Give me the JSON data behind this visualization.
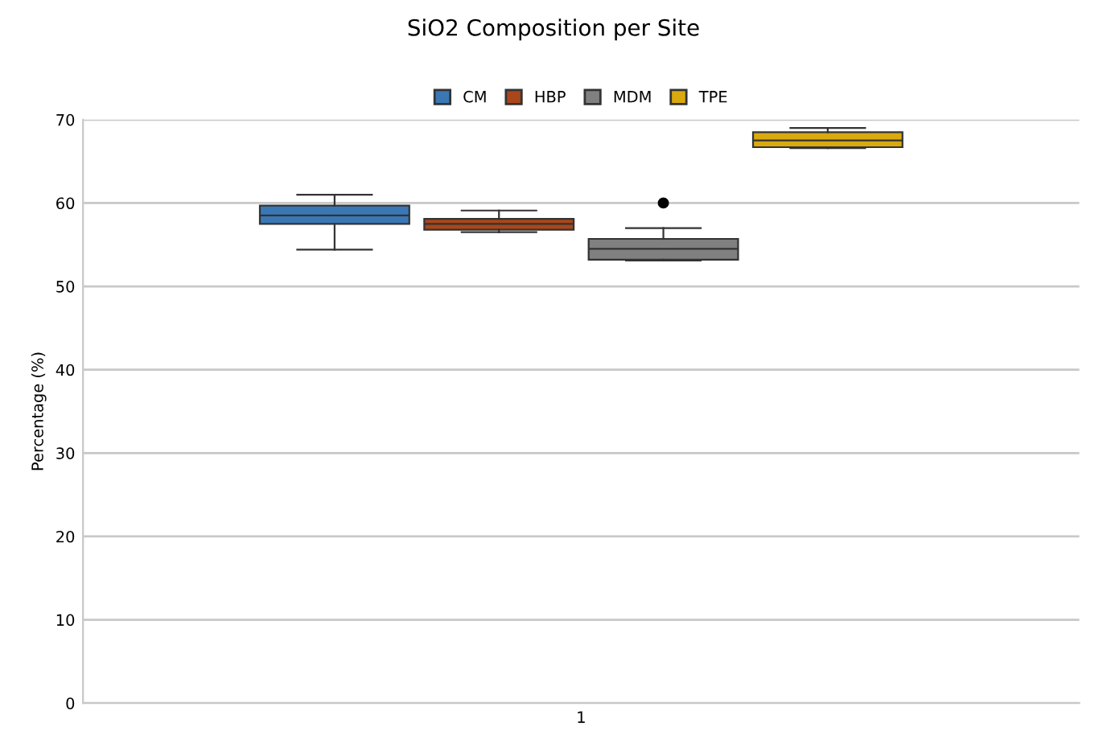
{
  "chart_data": {
    "type": "box",
    "title": "SiO2 Composition per Site",
    "ylabel": "Percentage (%)",
    "categories": [
      "1"
    ],
    "series": [
      {
        "name": "CM",
        "color": "#3a78b5",
        "boxes": [
          {
            "low": 54.4,
            "q1": 57.5,
            "median": 58.5,
            "q3": 59.7,
            "high": 61.0
          }
        ]
      },
      {
        "name": "HBP",
        "color": "#a9471a",
        "boxes": [
          {
            "low": 56.5,
            "q1": 56.8,
            "median": 57.5,
            "q3": 58.1,
            "high": 59.1
          }
        ]
      },
      {
        "name": "MDM",
        "color": "#808080",
        "boxes": [
          {
            "low": 53.1,
            "q1": 53.2,
            "median": 54.5,
            "q3": 55.7,
            "high": 57.0,
            "outliers": [
              60.0
            ]
          }
        ]
      },
      {
        "name": "TPE",
        "color": "#d9a90f",
        "boxes": [
          {
            "low": 66.6,
            "q1": 66.7,
            "median": 67.5,
            "q3": 68.5,
            "high": 69.0
          }
        ]
      }
    ],
    "ylim": [
      0,
      70
    ],
    "yticks": [
      0,
      10,
      20,
      30,
      40,
      50,
      60,
      70
    ],
    "grid": "y",
    "legend": "top"
  }
}
